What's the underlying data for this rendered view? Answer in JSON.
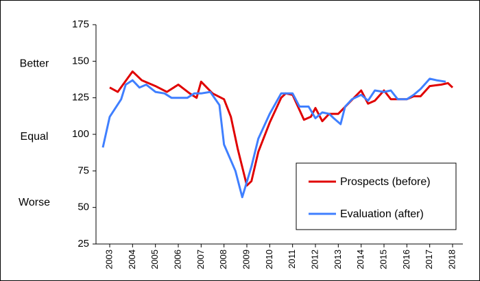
{
  "chart_data": {
    "type": "line",
    "annotations": [
      "Better",
      "Equal",
      "Worse"
    ],
    "annotation_values": [
      150,
      100,
      55
    ],
    "xlim": [
      2002.4,
      2018.45
    ],
    "xticks": [
      2003,
      2004,
      2005,
      2006,
      2007,
      2008,
      2009,
      2010,
      2011,
      2012,
      2013,
      2014,
      2015,
      2016,
      2017,
      2018
    ],
    "ylim": [
      25,
      175
    ],
    "yticks": [
      25,
      50,
      75,
      100,
      125,
      150,
      175
    ],
    "legend": "lower right",
    "series": [
      {
        "name": "Prospects (before)",
        "color": "#e00000",
        "x": [
          2003,
          2003.35,
          2004,
          2004.4,
          2005,
          2005.5,
          2006,
          2006.5,
          2006.8,
          2007,
          2007.5,
          2008,
          2008.3,
          2008.6,
          2009,
          2009.2,
          2009.5,
          2010,
          2010.5,
          2010.7,
          2011,
          2011.5,
          2011.8,
          2012,
          2012.3,
          2012.6,
          2013,
          2013.5,
          2014,
          2014.3,
          2014.6,
          2015,
          2015.3,
          2015.6,
          2016,
          2016.3,
          2016.6,
          2017,
          2017.5,
          2017.8,
          2018
        ],
        "values": [
          132,
          129,
          143,
          137,
          133,
          129,
          134,
          128,
          125,
          136,
          128,
          124,
          112,
          90,
          65,
          68,
          88,
          108,
          125,
          128,
          127,
          110,
          112,
          118,
          109,
          114,
          114,
          122,
          130,
          121,
          123,
          130,
          124,
          124,
          124,
          126,
          126,
          133,
          134,
          135,
          132
        ]
      },
      {
        "name": "Evaluation (after)",
        "color": "#3f7fff",
        "x": [
          2002.7,
          2003,
          2003.5,
          2003.7,
          2004,
          2004.3,
          2004.6,
          2005,
          2005.4,
          2005.7,
          2006,
          2006.4,
          2006.7,
          2007,
          2007.4,
          2007.8,
          2008,
          2008.5,
          2008.8,
          2009.2,
          2009.5,
          2010,
          2010.5,
          2011,
          2011.3,
          2011.7,
          2012,
          2012.3,
          2012.6,
          2012.8,
          2013.1,
          2013.3,
          2013.6,
          2014,
          2014.3,
          2014.6,
          2015,
          2015.3,
          2015.6,
          2016,
          2016.3,
          2016.6,
          2017,
          2017.3,
          2017.7
        ],
        "values": [
          91,
          112,
          124,
          134,
          137,
          132,
          134,
          129,
          128,
          125,
          125,
          125,
          128,
          128,
          129,
          120,
          93,
          75,
          57,
          78,
          97,
          114,
          128,
          128,
          119,
          119,
          111,
          115,
          114,
          111,
          107,
          119,
          124,
          127,
          123,
          130,
          129,
          130,
          124,
          124,
          127,
          131,
          138,
          137,
          136
        ]
      }
    ]
  }
}
